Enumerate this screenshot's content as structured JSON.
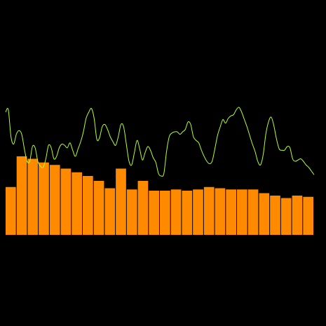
{
  "chart_data": {
    "type": "bar",
    "title": "",
    "xlabel": "",
    "ylabel": "",
    "grid": false,
    "legend": "none",
    "ylim": [
      0,
      100
    ],
    "bar_color": "#FF8A00",
    "bar_stroke": "#1a0a00",
    "line_color": "#B4FF2A",
    "background": "#000000",
    "series": [
      {
        "type": "bar",
        "values": [
          39,
          64,
          62,
          59,
          57,
          54,
          51,
          48,
          44,
          38,
          54,
          37,
          44,
          36,
          36,
          37,
          36,
          37,
          39,
          38,
          37,
          37,
          37,
          34,
          32,
          30,
          32,
          31
        ]
      },
      {
        "type": "line",
        "values": [
          100,
          102,
          80,
          74,
          82,
          85,
          82,
          70,
          60,
          60,
          72,
          71,
          60,
          56,
          55,
          62,
          73,
          71,
          62,
          64,
          71,
          74,
          73,
          71,
          75,
          69,
          64,
          70,
          76,
          84,
          95,
          100,
          103,
          95,
          78,
          79,
          88,
          90,
          86,
          80,
          76,
          73,
          80,
          90,
          88,
          74,
          60,
          57,
          67,
          77,
          70,
          61,
          67,
          72,
          69,
          63,
          59,
          50,
          48,
          50,
          68,
          80,
          83,
          84,
          84,
          82,
          84,
          86,
          92,
          90,
          80,
          77,
          75,
          69,
          64,
          60,
          58,
          60,
          70,
          81,
          88,
          94,
          91,
          95,
          97,
          98,
          102,
          104,
          100,
          94,
          88,
          81,
          74,
          68,
          60,
          57,
          65,
          82,
          92,
          96,
          89,
          78,
          70,
          69,
          69,
          72,
          71,
          62,
          60,
          61,
          62,
          60,
          57,
          55,
          52,
          49
        ]
      }
    ]
  }
}
